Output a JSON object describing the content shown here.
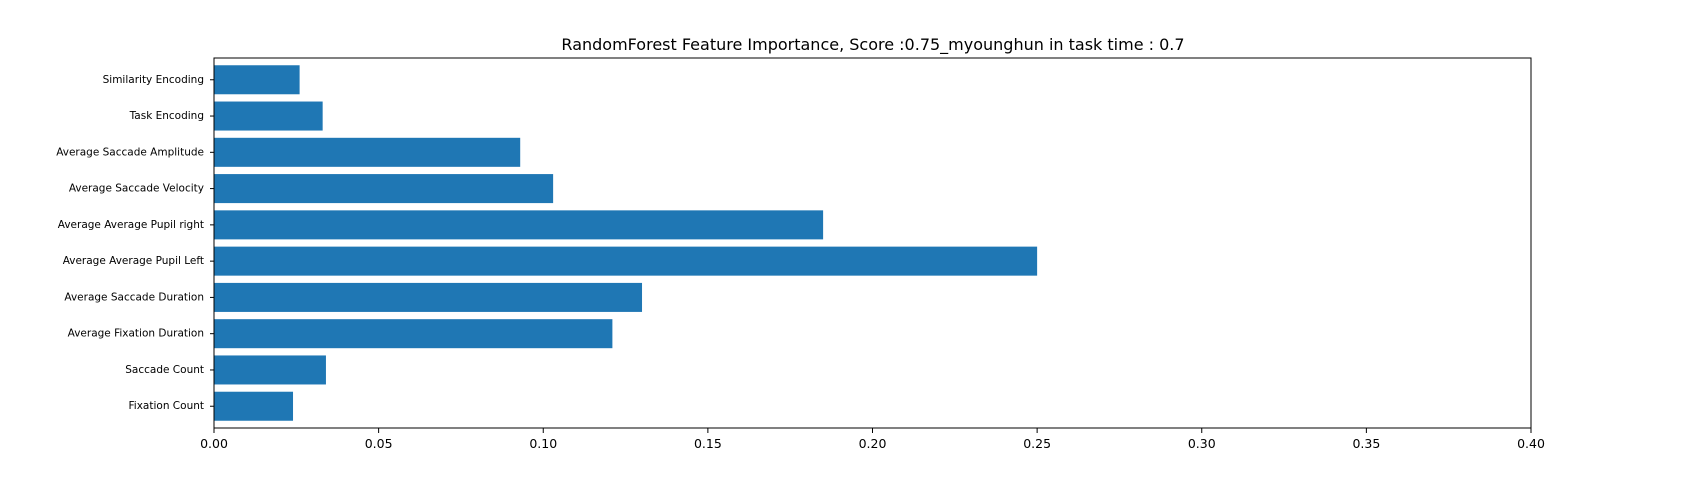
{
  "chart_data": {
    "type": "bar",
    "orientation": "horizontal",
    "title": "RandomForest Feature Importance, Score :0.75_myounghun in task time : 0.7",
    "xlabel": "",
    "ylabel": "",
    "xlim": [
      0,
      0.4
    ],
    "xticks": [
      0.0,
      0.05,
      0.1,
      0.15,
      0.2,
      0.25,
      0.3,
      0.35,
      0.4
    ],
    "xtick_labels": [
      "0.00",
      "0.05",
      "0.10",
      "0.15",
      "0.20",
      "0.25",
      "0.30",
      "0.35",
      "0.40"
    ],
    "categories": [
      "Fixation Count",
      "Saccade Count",
      "Average Fixation Duration",
      "Average Saccade Duration",
      "Average Average Pupil Left",
      "Average Average Pupil right",
      "Average Saccade Velocity",
      "Average Saccade Amplitude",
      "Task Encoding",
      "Similarity Encoding"
    ],
    "values": [
      0.024,
      0.034,
      0.121,
      0.13,
      0.25,
      0.185,
      0.103,
      0.093,
      0.033,
      0.026
    ],
    "bar_color": "#1f77b4",
    "grid": false,
    "legend": "none"
  }
}
